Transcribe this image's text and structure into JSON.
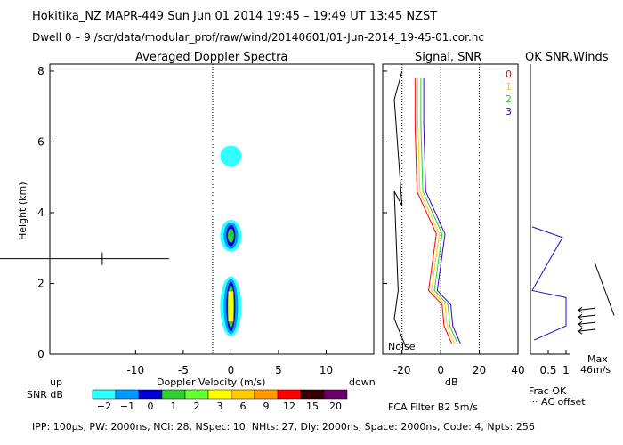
{
  "header": {
    "line1": "Hokitika_NZ   MAPR-449   Sun Jun 01 2014 19:45 – 19:49 UT 13:45 NZST",
    "line2": "Dwell  0 –  9   /scr/data/modular_prof/raw/wind/20140601/01-Jun-2014_19-45-01.cor.nc"
  },
  "panels": {
    "spectra_title": "Averaged Doppler Spectra",
    "signal_title": "Signal, SNR",
    "ok_title": "OK SNR,Winds"
  },
  "colors": {
    "cyan": "#33ffff",
    "blue1": "#0099ff",
    "blue2": "#0000cc",
    "green": "#33cc33",
    "yellow": "#ffff00",
    "orange": "#ff9900",
    "red": "#ff0000",
    "black": "#000000",
    "series0": "#ff0000",
    "series1": "#ffcc00",
    "series2": "#33cc33",
    "series3": "#3300cc"
  },
  "chart_data": [
    {
      "type": "heatmap",
      "title": "Averaged Doppler Spectra",
      "xlabel": "Doppler Velocity (m/s)",
      "ylabel": "Height (km)",
      "xlim": [
        -19,
        15
      ],
      "ylim": [
        0,
        8.2
      ],
      "x_ticks": [
        "-10",
        "-5",
        "0",
        "5",
        "10"
      ],
      "y_ticks": [
        "0",
        "2",
        "4",
        "6",
        "8"
      ],
      "x_end_labels": {
        "left": "up",
        "right": "down"
      },
      "wind_marker": {
        "height_km": 2.7,
        "velocity_ms": -13.5
      },
      "echo_regions": [
        {
          "height_range_km": [
            0.5,
            2.2
          ],
          "center_velocity_ms": 0,
          "max_snr_db": 3
        },
        {
          "height_range_km": [
            2.9,
            3.8
          ],
          "center_velocity_ms": 0,
          "max_snr_db": 2
        },
        {
          "height_range_km": [
            5.3,
            5.9
          ],
          "center_velocity_ms": 0,
          "max_snr_db": -2
        }
      ]
    },
    {
      "type": "line",
      "title": "Signal, SNR",
      "xlabel": "dB",
      "xlim": [
        -30,
        40
      ],
      "ylim": [
        0,
        8.2
      ],
      "x_ticks": [
        "-20",
        "0",
        "20",
        "40"
      ],
      "noise_label": "Noise",
      "series_legend": [
        "0",
        "1",
        "2",
        "3"
      ],
      "signal_dB_at_height": [
        {
          "height_km": 0.3,
          "dB": 8
        },
        {
          "height_km": 0.8,
          "dB": 4
        },
        {
          "height_km": 1.4,
          "dB": 3
        },
        {
          "height_km": 1.8,
          "dB": -4
        },
        {
          "height_km": 3.4,
          "dB": 0
        },
        {
          "height_km": 4.6,
          "dB": -10
        },
        {
          "height_km": 6.5,
          "dB": -11
        },
        {
          "height_km": 7.8,
          "dB": -11
        }
      ]
    },
    {
      "type": "line",
      "title": "OK SNR,Winds",
      "xlabel": "Frac OK",
      "x_ticks": [
        "0.5",
        "1"
      ],
      "note_lines": [
        "Frac OK",
        "··· AC offset"
      ],
      "max_wind_label": "Max",
      "max_wind_value": "46m/s",
      "frac_ok_at_height": [
        {
          "height_km": 0.4,
          "frac": 0.1
        },
        {
          "height_km": 0.8,
          "frac": 1.0
        },
        {
          "height_km": 1.6,
          "frac": 1.0
        },
        {
          "height_km": 1.8,
          "frac": 0.05
        },
        {
          "height_km": 3.3,
          "frac": 0.9
        },
        {
          "height_km": 3.6,
          "frac": 0.05
        }
      ]
    }
  ],
  "snr_legend": {
    "label": "SNR dB",
    "ticks": [
      "−2",
      "−1",
      "0",
      "1",
      "2",
      "3",
      "6",
      "9",
      "12",
      "15",
      "20"
    ],
    "colors": [
      "#33ffff",
      "#0099ff",
      "#0000cc",
      "#33cc33",
      "#66ff33",
      "#ffff00",
      "#ffcc00",
      "#ff9900",
      "#ff0000",
      "#330000",
      "#660066"
    ]
  },
  "fca_label": "FCA Filter B2   5m/s",
  "footer": "IPP: 100µs,  PW: 2000ns,  NCI:  28,  NSpec: 10,  NHts: 27,  Dly: 2000ns,  Space: 2000ns,  Code: 4,  Npts: 256"
}
